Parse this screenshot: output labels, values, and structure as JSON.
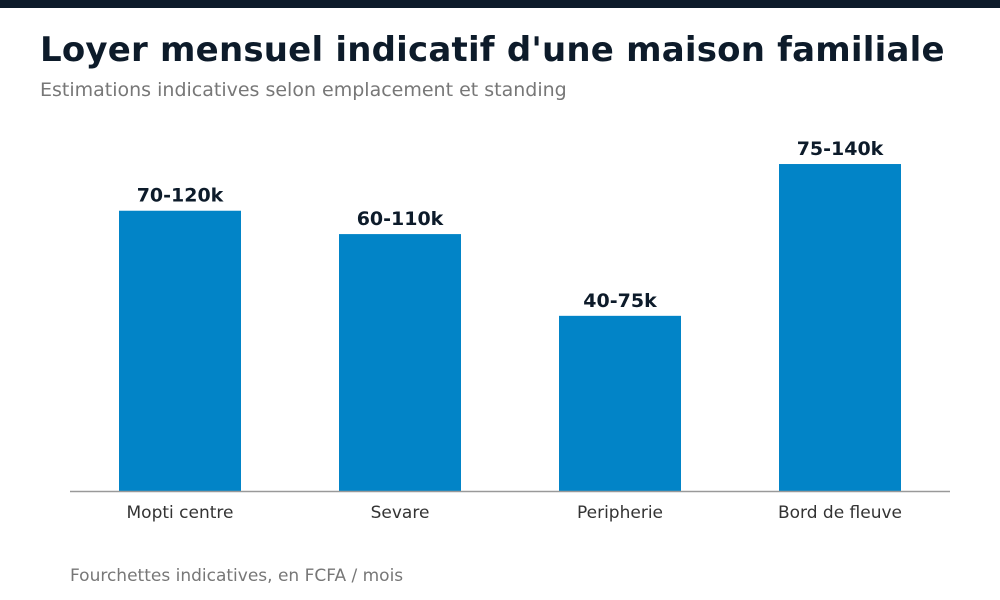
{
  "header": {
    "title": "Loyer mensuel indicatif d'une maison familiale",
    "subtitle": "Estimations indicatives selon emplacement et standing"
  },
  "footnote": "Fourchettes indicatives, en FCFA / mois",
  "colors": {
    "top_bar": "#0d1b2a",
    "bar": "#0284c7",
    "axis": "#999999"
  },
  "chart_data": {
    "type": "bar",
    "title": "Loyer mensuel indicatif d'une maison familiale",
    "subtitle": "Estimations indicatives selon emplacement et standing",
    "xlabel": "",
    "ylabel": "",
    "categories": [
      "Mopti centre",
      "Sevare",
      "Peripherie",
      "Bord de fleuve"
    ],
    "values": [
      120,
      110,
      75,
      140
    ],
    "data_labels": [
      "70-120k",
      "60-110k",
      "40-75k",
      "75-140k"
    ],
    "ylim": [
      0,
      152
    ],
    "grid": false,
    "legend": "none"
  }
}
